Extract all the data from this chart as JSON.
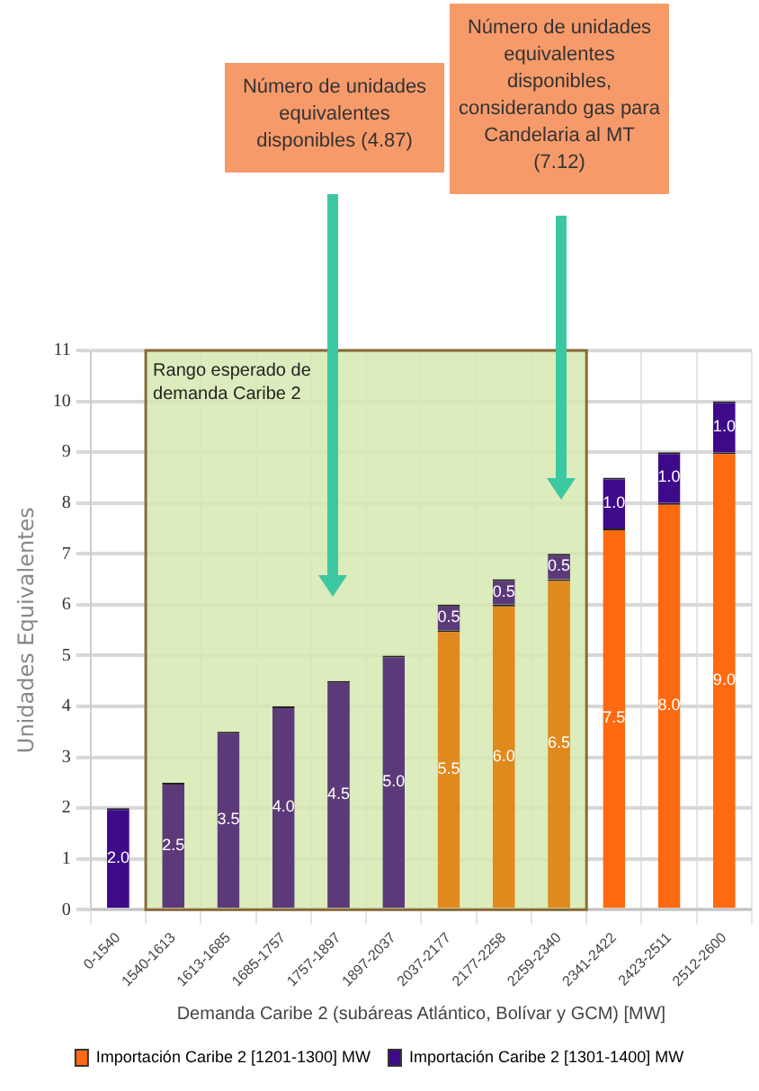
{
  "chart_data": {
    "type": "bar",
    "stacked": true,
    "xlabel": "Demanda Caribe 2 (subáreas Atlántico, Bolívar y GCM) [MW]",
    "ylabel": "Unidades Equivalentes",
    "categories": [
      "0-1540",
      "1540-1613",
      "1613-1685",
      "1685-1757",
      "1757-1897",
      "1897-2037",
      "2037-2177",
      "2177-2258",
      "2259-2340",
      "2341-2422",
      "2423-2511",
      "2512-2600"
    ],
    "series": [
      {
        "name": "Importación Caribe 2 [1201-1300] MW",
        "color": "#ff6a10",
        "colors": [
          null,
          null,
          null,
          null,
          null,
          null,
          "#e08a1e",
          "#e08a1e",
          "#e08a1e",
          "#ff6a10",
          "#ff6a10",
          "#ff6a10"
        ],
        "values": [
          null,
          null,
          null,
          null,
          null,
          null,
          5.5,
          6.0,
          6.5,
          7.5,
          8.0,
          9.0
        ],
        "value_labels": [
          null,
          null,
          null,
          null,
          null,
          null,
          "5.5",
          "6.0",
          "6.5",
          "7.5",
          "8.0",
          "9.0"
        ]
      },
      {
        "name": "Importación Caribe 2 [1301-1400] MW",
        "color": "#3d0a8a",
        "colors": [
          "#3d0a8a",
          "#5c3a7a",
          "#5c3a7a",
          "#5c3a7a",
          "#5c3a7a",
          "#5c3a7a",
          "#5c3a7a",
          "#5c3a7a",
          "#5c3a7a",
          "#3d0a8a",
          "#3d0a8a",
          "#3d0a8a"
        ],
        "values": [
          2.0,
          2.5,
          3.5,
          4.0,
          4.5,
          5.0,
          0.5,
          0.5,
          0.5,
          1.0,
          1.0,
          1.0
        ],
        "value_labels": [
          "2.0",
          "2.5",
          "3.5",
          "4.0",
          "4.5",
          "5.0",
          "0.5",
          "0.5",
          "0.5",
          "1.0",
          "1.0",
          "1.0"
        ]
      }
    ],
    "ylim": [
      0,
      11
    ],
    "yticks": [
      0,
      1,
      2,
      3,
      4,
      5,
      6,
      7,
      8,
      9,
      10,
      11
    ],
    "grid": true,
    "legend": "bottom",
    "bands": [
      {
        "axis": "x",
        "from": "1540-1613",
        "to": "2259-2340",
        "label": "Rango esperado de demanda Caribe 2",
        "color": "#d6e9b0"
      }
    ],
    "annotations": [
      "Número de unidades equivalentes disponibles (4.87)",
      "Número de unidades equivalentes disponibles, considerando gas para Candelaria al MT (7.12)"
    ]
  }
}
